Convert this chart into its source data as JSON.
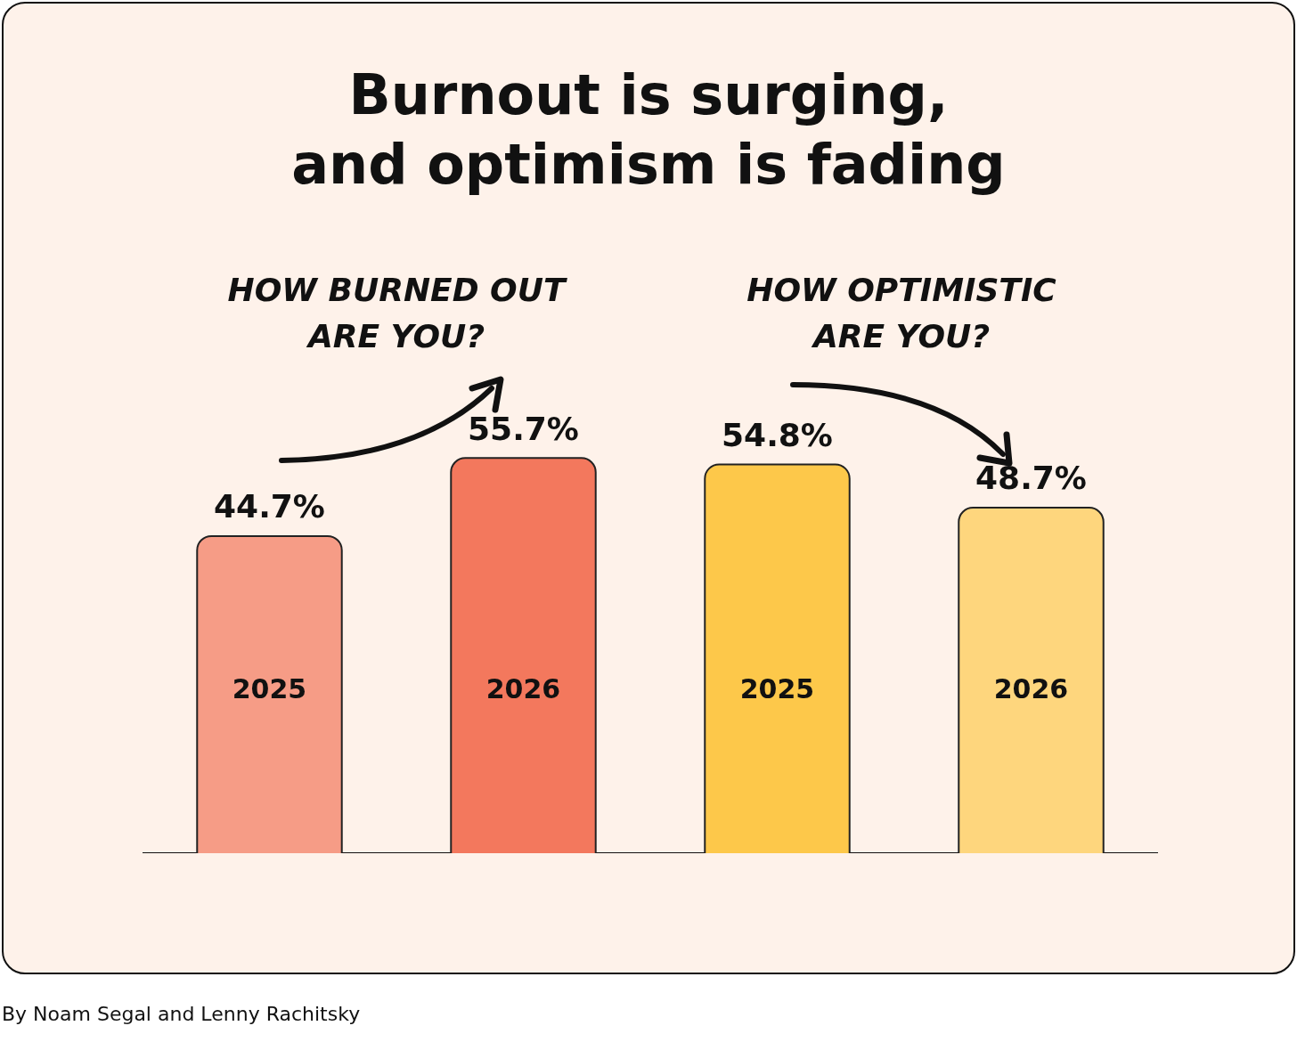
{
  "chart_data": {
    "type": "bar",
    "title": "Burnout is surging,\nand optimism is fading",
    "categories": [
      "2025",
      "2026",
      "2025",
      "2026"
    ],
    "values": [
      44.7,
      55.7,
      54.8,
      48.7
    ],
    "colors": [
      "#f69c86",
      "#f3785d",
      "#fdc84a",
      "#fed67d"
    ],
    "value_labels": [
      "44.7%",
      "55.7%",
      "54.8%",
      "48.7%"
    ],
    "grid": false,
    "legend": false,
    "tick_labels": "x",
    "annotations": [
      "HOW BURNED OUT ARE YOU?",
      "HOW OPTIMISTIC ARE YOU?",
      "By Noam Segal and Lenny Rachitsky"
    ]
  }
}
